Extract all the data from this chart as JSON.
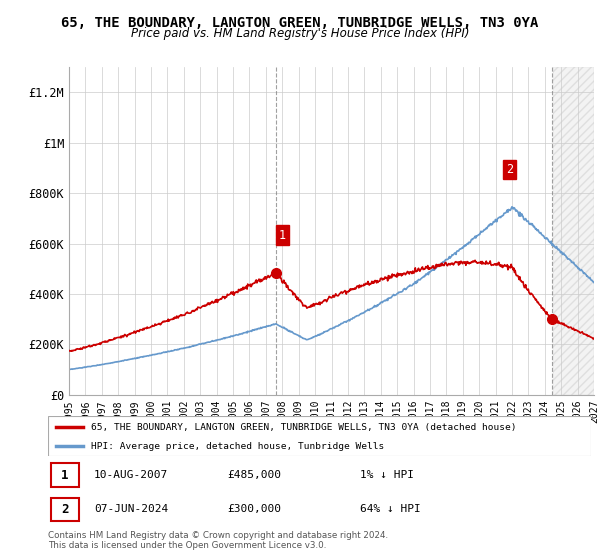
{
  "title": "65, THE BOUNDARY, LANGTON GREEN, TUNBRIDGE WELLS, TN3 0YA",
  "subtitle": "Price paid vs. HM Land Registry's House Price Index (HPI)",
  "hpi_label": "HPI: Average price, detached house, Tunbridge Wells",
  "property_label": "65, THE BOUNDARY, LANGTON GREEN, TUNBRIDGE WELLS, TN3 0YA (detached house)",
  "sale1_date": "10-AUG-2007",
  "sale1_price": 485000,
  "sale1_hpi": "1% ↓ HPI",
  "sale1_year": 2007.6,
  "sale2_date": "07-JUN-2024",
  "sale2_price": 300000,
  "sale2_hpi": "64% ↓ HPI",
  "sale2_year": 2024.44,
  "x_start": 1995,
  "x_end": 2027,
  "y_max": 1300000,
  "hpi_color": "#6699cc",
  "property_color": "#cc0000",
  "background_color": "#ffffff",
  "grid_color": "#cccccc",
  "footer_text": "Contains HM Land Registry data © Crown copyright and database right 2024.\nThis data is licensed under the Open Government Licence v3.0.",
  "yticks": [
    0,
    200000,
    400000,
    600000,
    800000,
    1000000,
    1200000
  ],
  "ytick_labels": [
    "£0",
    "£200K",
    "£400K",
    "£600K",
    "£800K",
    "£1M",
    "£1.2M"
  ],
  "xticks": [
    1995,
    1996,
    1997,
    1998,
    1999,
    2000,
    2001,
    2002,
    2003,
    2004,
    2005,
    2006,
    2007,
    2008,
    2009,
    2010,
    2011,
    2012,
    2013,
    2014,
    2015,
    2016,
    2017,
    2018,
    2019,
    2020,
    2021,
    2022,
    2023,
    2024,
    2025,
    2026,
    2027
  ]
}
